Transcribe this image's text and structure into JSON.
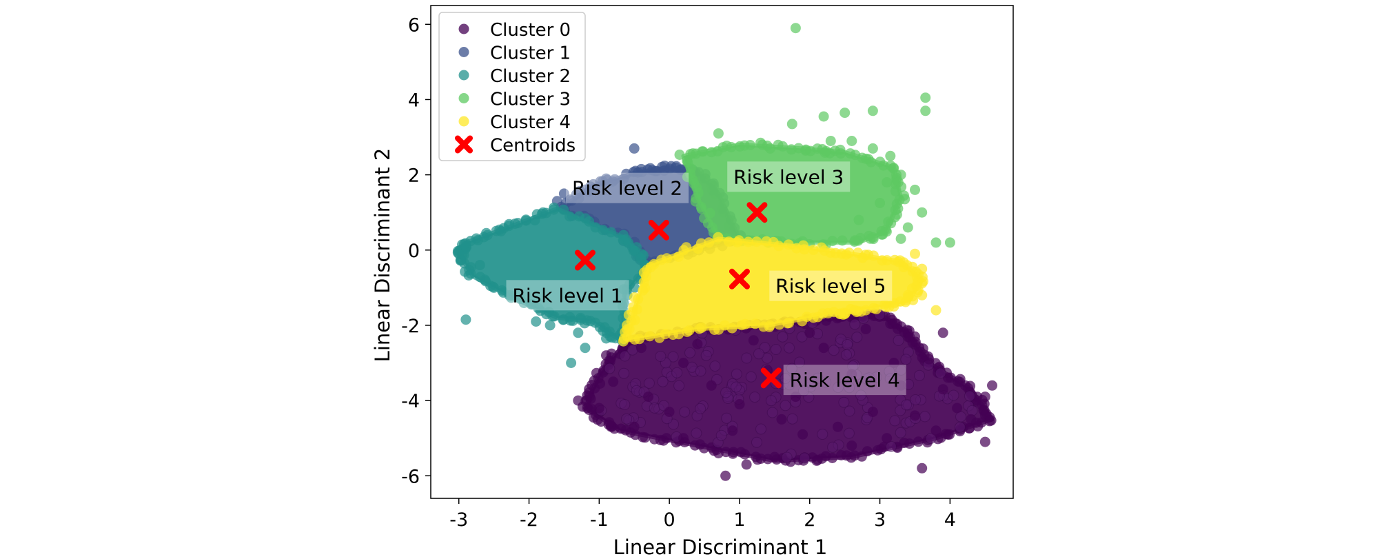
{
  "chart_data": {
    "type": "scatter",
    "title": "",
    "xlabel": "Linear Discriminant 1",
    "ylabel": "Linear Discriminant 2",
    "xlim": [
      -3.4,
      4.9
    ],
    "ylim": [
      -6.6,
      6.5
    ],
    "xticks": [
      -3,
      -2,
      -1,
      0,
      1,
      2,
      3,
      4
    ],
    "yticks": [
      -6,
      -4,
      -2,
      0,
      2,
      4,
      6
    ],
    "tick_labels_x": [
      "-3",
      "-2",
      "-1",
      "0",
      "1",
      "2",
      "3",
      "4"
    ],
    "tick_labels_y": [
      "-6",
      "-4",
      "-2",
      "0",
      "2",
      "4",
      "6"
    ],
    "grid": false,
    "legend_position": "top-left",
    "series": [
      {
        "name": "Cluster 0",
        "color": "#440154",
        "region": [
          [
            -0.6,
            -2.4
          ],
          [
            0.4,
            -2.1
          ],
          [
            1.5,
            -2.0
          ],
          [
            2.4,
            -1.8
          ],
          [
            3.0,
            -1.7
          ],
          [
            3.4,
            -2.2
          ],
          [
            3.7,
            -3.0
          ],
          [
            4.3,
            -3.7
          ],
          [
            4.6,
            -4.5
          ],
          [
            3.8,
            -5.0
          ],
          [
            2.6,
            -5.5
          ],
          [
            1.5,
            -5.6
          ],
          [
            0.4,
            -5.2
          ],
          [
            -0.7,
            -4.8
          ],
          [
            -1.2,
            -4.2
          ],
          [
            -1.0,
            -3.3
          ]
        ],
        "points": [
          [
            -0.4,
            -2.6
          ],
          [
            -0.8,
            -3.5
          ],
          [
            -1.0,
            -4.2
          ],
          [
            -0.5,
            -4.7
          ],
          [
            0.2,
            -5.0
          ],
          [
            0.7,
            -5.4
          ],
          [
            1.1,
            -5.7
          ],
          [
            1.5,
            -5.5
          ],
          [
            2.1,
            -5.6
          ],
          [
            2.6,
            -5.2
          ],
          [
            3.1,
            -5.0
          ],
          [
            3.6,
            -5.8
          ],
          [
            3.8,
            -4.8
          ],
          [
            4.1,
            -4.2
          ],
          [
            4.3,
            -4.5
          ],
          [
            4.6,
            -3.6
          ],
          [
            4.5,
            -3.9
          ],
          [
            4.5,
            -5.1
          ],
          [
            3.9,
            -3.7
          ],
          [
            3.7,
            -2.9
          ],
          [
            3.9,
            -2.2
          ],
          [
            3.5,
            -2.3
          ],
          [
            0.8,
            -6.0
          ],
          [
            -1.3,
            -4.0
          ],
          [
            -0.9,
            -2.8
          ],
          [
            0.2,
            -3.0
          ],
          [
            0.6,
            -3.6
          ],
          [
            1.0,
            -4.1
          ],
          [
            1.4,
            -3.2
          ],
          [
            1.8,
            -3.9
          ],
          [
            2.2,
            -2.6
          ],
          [
            2.6,
            -3.3
          ],
          [
            2.9,
            -4.3
          ],
          [
            3.2,
            -3.0
          ],
          [
            2.4,
            -4.7
          ],
          [
            1.9,
            -4.9
          ],
          [
            0.0,
            -4.3
          ],
          [
            -0.3,
            -3.9
          ],
          [
            0.4,
            -2.5
          ],
          [
            1.2,
            -2.4
          ],
          [
            2.0,
            -2.2
          ],
          [
            2.8,
            -2.1
          ],
          [
            3.3,
            -3.6
          ],
          [
            3.5,
            -4.4
          ],
          [
            1.6,
            -4.5
          ],
          [
            0.9,
            -4.8
          ]
        ]
      },
      {
        "name": "Cluster 1",
        "color": "#3b528b",
        "region": [
          [
            -1.55,
            1.1
          ],
          [
            -1.1,
            1.7
          ],
          [
            -0.5,
            2.05
          ],
          [
            0.0,
            2.2
          ],
          [
            0.4,
            2.1
          ],
          [
            0.7,
            1.5
          ],
          [
            1.0,
            0.3
          ],
          [
            -0.3,
            -0.4
          ],
          [
            -0.6,
            0.3
          ]
        ],
        "points": [
          [
            -1.5,
            1.5
          ],
          [
            -0.5,
            2.7
          ],
          [
            -0.2,
            2.1
          ],
          [
            -1.6,
            1.3
          ],
          [
            -0.9,
            1.9
          ],
          [
            0.3,
            2.15
          ],
          [
            -0.4,
            2.15
          ]
        ]
      },
      {
        "name": "Cluster 2",
        "color": "#21918c",
        "region": [
          [
            -3.0,
            -0.1
          ],
          [
            -2.9,
            0.2
          ],
          [
            -2.3,
            0.6
          ],
          [
            -1.6,
            1.1
          ],
          [
            -0.6,
            0.3
          ],
          [
            -0.3,
            -0.4
          ],
          [
            -0.6,
            -1.1
          ],
          [
            -0.7,
            -2.4
          ],
          [
            -1.1,
            -1.9
          ],
          [
            -1.6,
            -1.8
          ],
          [
            -2.2,
            -1.3
          ],
          [
            -2.8,
            -0.7
          ]
        ],
        "points": [
          [
            -3.0,
            -0.1
          ],
          [
            -2.9,
            -1.85
          ],
          [
            -2.7,
            -0.4
          ],
          [
            -2.5,
            -1.0
          ],
          [
            -2.2,
            0.7
          ],
          [
            -1.7,
            -2.0
          ],
          [
            -1.4,
            -3.0
          ],
          [
            -1.2,
            -2.6
          ],
          [
            -0.9,
            -2.35
          ],
          [
            -1.9,
            -1.9
          ],
          [
            -2.9,
            0.1
          ],
          [
            -2.4,
            0.5
          ],
          [
            -1.8,
            1.0
          ],
          [
            -1.3,
            -2.2
          ]
        ]
      },
      {
        "name": "Cluster 3",
        "color": "#5ec962",
        "region": [
          [
            0.2,
            2.5
          ],
          [
            1.0,
            2.8
          ],
          [
            1.9,
            2.7
          ],
          [
            2.5,
            2.6
          ],
          [
            3.2,
            2.2
          ],
          [
            3.3,
            1.4
          ],
          [
            3.1,
            0.5
          ],
          [
            2.7,
            0.2
          ],
          [
            1.6,
            0.2
          ],
          [
            0.7,
            0.3
          ],
          [
            0.4,
            1.4
          ]
        ],
        "points": [
          [
            1.8,
            5.9
          ],
          [
            3.65,
            4.05
          ],
          [
            3.65,
            3.7
          ],
          [
            2.9,
            3.7
          ],
          [
            2.5,
            3.65
          ],
          [
            2.2,
            3.55
          ],
          [
            1.75,
            3.35
          ],
          [
            0.7,
            3.1
          ],
          [
            2.6,
            2.9
          ],
          [
            2.9,
            2.7
          ],
          [
            3.15,
            2.5
          ],
          [
            3.3,
            2.0
          ],
          [
            3.5,
            1.6
          ],
          [
            3.0,
            1.25
          ],
          [
            3.6,
            1.0
          ],
          [
            3.8,
            0.2
          ],
          [
            4.0,
            0.2
          ],
          [
            3.3,
            0.3
          ],
          [
            2.7,
            0.8
          ],
          [
            3.4,
            0.6
          ],
          [
            2.3,
            2.9
          ],
          [
            0.3,
            2.55
          ],
          [
            1.3,
            2.85
          ],
          [
            3.1,
            1.8
          ]
        ]
      },
      {
        "name": "Cluster 4",
        "color": "#fde725",
        "region": [
          [
            -0.6,
            -2.4
          ],
          [
            -0.5,
            -1.6
          ],
          [
            -0.3,
            -0.4
          ],
          [
            0.7,
            0.3
          ],
          [
            1.8,
            0.1
          ],
          [
            2.6,
            -0.1
          ],
          [
            3.3,
            -0.3
          ],
          [
            3.6,
            -0.8
          ],
          [
            3.4,
            -1.4
          ],
          [
            2.7,
            -1.6
          ],
          [
            2.3,
            -1.7
          ],
          [
            1.4,
            -2.0
          ],
          [
            0.4,
            -2.1
          ]
        ],
        "points": [
          [
            3.6,
            -0.5
          ],
          [
            3.6,
            -1.2
          ],
          [
            3.8,
            -1.6
          ],
          [
            3.4,
            -1.2
          ],
          [
            2.5,
            -1.7
          ],
          [
            -0.6,
            -2.3
          ],
          [
            3.2,
            -1.5
          ],
          [
            3.5,
            -0.1
          ]
        ]
      },
      {
        "name": "Centroids",
        "color": "#ff0000",
        "marker": "X",
        "points": [
          [
            -1.2,
            -0.27
          ],
          [
            -0.15,
            0.53
          ],
          [
            1.25,
            1.0
          ],
          [
            1.45,
            -3.4
          ],
          [
            1.0,
            -0.77
          ]
        ]
      }
    ],
    "annotations": [
      {
        "text": "Risk level 1",
        "x": -1.45,
        "y": -1.2,
        "color": "#21918c"
      },
      {
        "text": "Risk level 2",
        "x": -0.6,
        "y": 1.65,
        "color": "#3b528b"
      },
      {
        "text": "Risk level 3",
        "x": 1.7,
        "y": 1.95,
        "color": "#5ec962"
      },
      {
        "text": "Risk level 4",
        "x": 2.5,
        "y": -3.45,
        "color": "#440154"
      },
      {
        "text": "Risk level 5",
        "x": 2.3,
        "y": -0.95,
        "color": "#fde725"
      }
    ]
  }
}
